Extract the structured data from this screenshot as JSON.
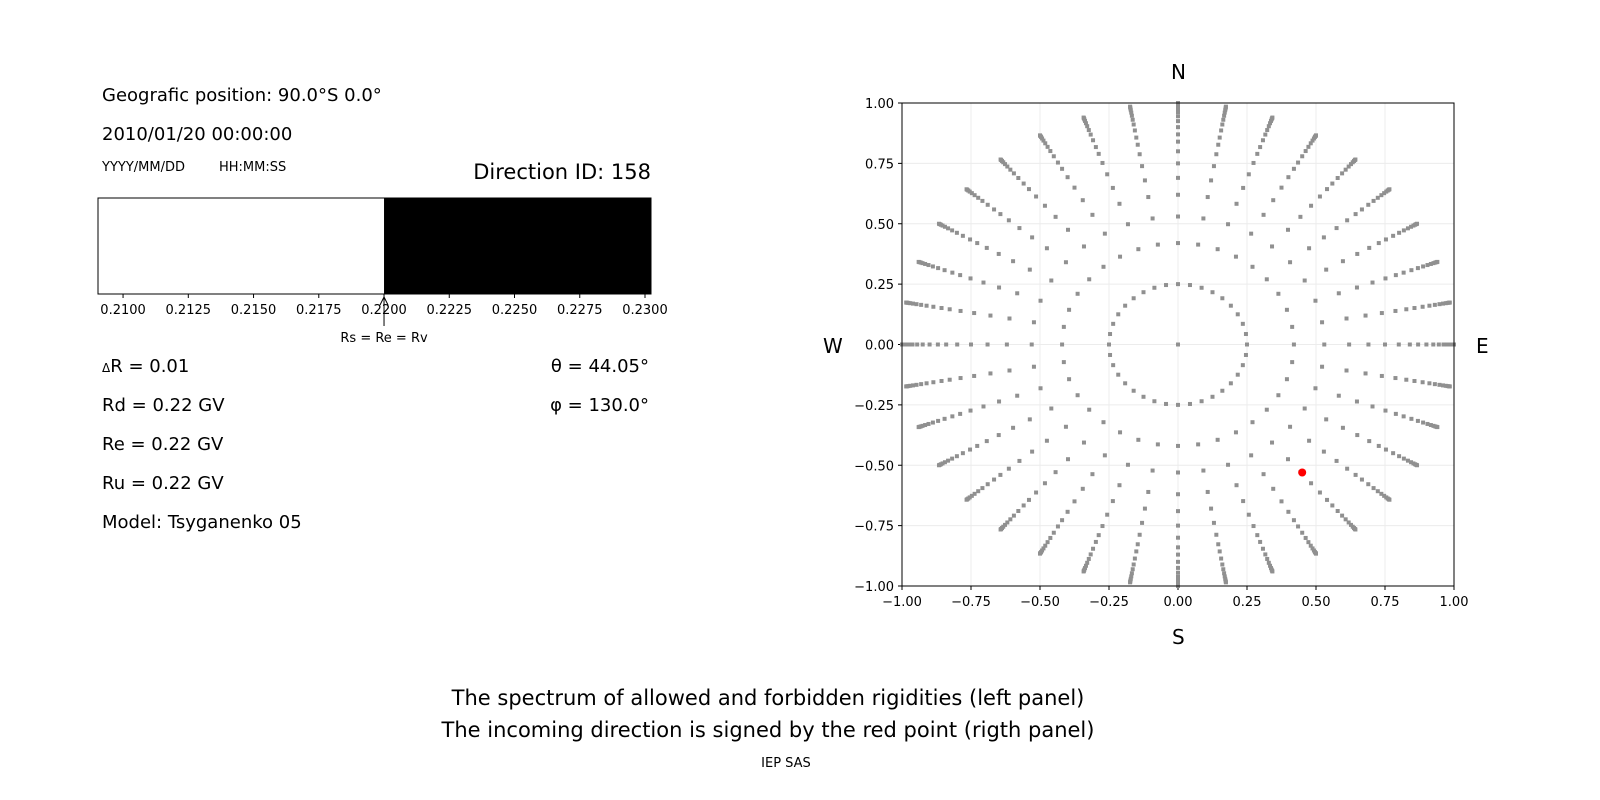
{
  "left_panel": {
    "geo_position": "Geografic position: 90.0°S 0.0°",
    "datetime": "2010/01/20 00:00:00",
    "date_format_label": "YYYY/MM/DD",
    "time_format_label": "HH:MM:SS",
    "direction_id": "Direction ID: 158",
    "delta_r": "R = 0.01",
    "delta_symbol": "Δ",
    "rd": "Rd = 0.22 GV",
    "re": "Re = 0.22 GV",
    "ru": "Ru = 0.22 GV",
    "model": "Model: Tsyganenko 05",
    "theta": "θ = 44.05°",
    "phi": "φ = 130.0°"
  },
  "chart_data": [
    {
      "type": "bar",
      "description_label": "Rs = Re = Rv",
      "xlim": [
        0.20904,
        0.23023
      ],
      "x_ticks": [
        "0.2100",
        "0.2125",
        "0.2150",
        "0.2175",
        "0.2200",
        "0.2225",
        "0.2250",
        "0.2275",
        "0.2300"
      ],
      "x_tick_values": [
        0.21,
        0.2125,
        0.215,
        0.2175,
        0.22,
        0.2225,
        0.225,
        0.2275,
        0.23
      ],
      "segments": [
        {
          "from": 0.20904,
          "to": 0.22,
          "state": "allowed",
          "color": "#ffffff"
        },
        {
          "from": 0.22,
          "to": 0.23023,
          "state": "forbidden",
          "color": "#000000"
        }
      ],
      "marker_value": 0.22
    },
    {
      "type": "scatter",
      "xlim": [
        -1,
        1
      ],
      "ylim": [
        -1,
        1
      ],
      "x_ticks": [
        "−1.00",
        "−0.75",
        "−0.50",
        "−0.25",
        "0.00",
        "0.25",
        "0.50",
        "0.75",
        "1.00"
      ],
      "y_ticks": [
        "−1.00",
        "−0.75",
        "−0.50",
        "−0.25",
        "0.00",
        "0.25",
        "0.50",
        "0.75",
        "1.00"
      ],
      "tick_values": [
        -1,
        -0.75,
        -0.5,
        -0.25,
        0,
        0.25,
        0.5,
        0.75,
        1
      ],
      "grid": true,
      "compass": {
        "north": "N",
        "south": "S",
        "west": "W",
        "east": "E"
      },
      "grid_points": {
        "color": "#909090",
        "center": [
          0,
          0
        ],
        "ring_radii": [
          0.25,
          0.42,
          0.53,
          0.62,
          0.69,
          0.75,
          0.8,
          0.84,
          0.87,
          0.9,
          0.925,
          0.945,
          0.962,
          0.975,
          0.985,
          0.992,
          0.997,
          1.0
        ],
        "azimuth_step_deg": 10
      },
      "incoming_direction": {
        "x": 0.45,
        "y": -0.53,
        "color": "#ff0000"
      }
    }
  ],
  "footer": {
    "caption_line1": "The spectrum of allowed and forbidden rigidities (left panel)",
    "caption_line2": "The incoming direction is signed by the red point (rigth panel)",
    "credit": "IEP SAS"
  }
}
